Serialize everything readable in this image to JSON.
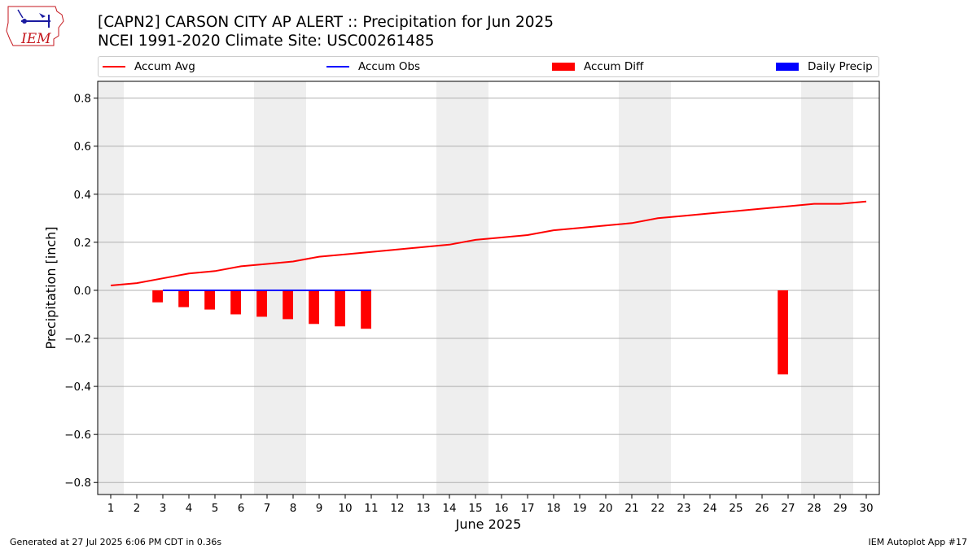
{
  "logo": {
    "text": "IEM"
  },
  "title_line1": "[CAPN2] CARSON CITY AP ALERT :: Precipitation for Jun 2025",
  "title_line2": "NCEI 1991-2020 Climate Site: USC00261485",
  "legend": [
    {
      "label": "Accum Avg",
      "color": "#ff0000",
      "kind": "line"
    },
    {
      "label": "Accum Obs",
      "color": "#0000ff",
      "kind": "line"
    },
    {
      "label": "Accum Diff",
      "color": "#ff0000",
      "kind": "patch"
    },
    {
      "label": "Daily Precip",
      "color": "#0000ff",
      "kind": "patch"
    }
  ],
  "footer_left": "Generated at 27 Jul 2025 6:06 PM CDT in 0.36s",
  "footer_right": "IEM Autoplot App #17",
  "chart_data": {
    "type": "line",
    "xlabel": "June 2025",
    "ylabel": "Precipitation [inch]",
    "xlim": [
      0.5,
      30.5
    ],
    "ylim": [
      -0.85,
      0.87
    ],
    "x_ticks": [
      1,
      2,
      3,
      4,
      5,
      6,
      7,
      8,
      9,
      10,
      11,
      12,
      13,
      14,
      15,
      16,
      17,
      18,
      19,
      20,
      21,
      22,
      23,
      24,
      25,
      26,
      27,
      28,
      29,
      30
    ],
    "y_ticks": [
      0.8,
      0.6,
      0.4,
      0.2,
      0.0,
      -0.2,
      -0.4,
      -0.6,
      -0.8
    ],
    "y_tick_labels": [
      "0.8",
      "0.6",
      "0.4",
      "0.2",
      "0.0",
      "−0.2",
      "−0.4",
      "−0.6",
      "−0.8"
    ],
    "grid": "horizontal",
    "weekend_shading": [
      [
        0.5,
        1.5
      ],
      [
        6.5,
        8.5
      ],
      [
        13.5,
        15.5
      ],
      [
        20.5,
        22.5
      ],
      [
        27.5,
        29.5
      ]
    ],
    "shading_color": "#eeeeee",
    "series": [
      {
        "name": "Accum Avg",
        "kind": "line",
        "color": "#ff0000",
        "x": [
          1,
          2,
          3,
          4,
          5,
          6,
          7,
          8,
          9,
          10,
          11,
          12,
          13,
          14,
          15,
          16,
          17,
          18,
          19,
          20,
          21,
          22,
          23,
          24,
          25,
          26,
          27,
          28,
          29,
          30
        ],
        "y": [
          0.02,
          0.03,
          0.05,
          0.07,
          0.08,
          0.1,
          0.11,
          0.12,
          0.14,
          0.15,
          0.16,
          0.17,
          0.18,
          0.19,
          0.21,
          0.22,
          0.23,
          0.25,
          0.26,
          0.27,
          0.28,
          0.3,
          0.31,
          0.32,
          0.33,
          0.34,
          0.35,
          0.36,
          0.36,
          0.37
        ]
      },
      {
        "name": "Accum Obs",
        "kind": "line",
        "color": "#0000ff",
        "x": [
          3,
          4,
          5,
          6,
          7,
          8,
          9,
          10,
          11
        ],
        "y": [
          0,
          0,
          0,
          0,
          0,
          0,
          0,
          0,
          0
        ]
      },
      {
        "name": "Accum Diff",
        "kind": "bar",
        "color": "#ff0000",
        "x": [
          3,
          4,
          5,
          6,
          7,
          8,
          9,
          10,
          11,
          27
        ],
        "y": [
          -0.05,
          -0.07,
          -0.08,
          -0.1,
          -0.11,
          -0.12,
          -0.14,
          -0.15,
          -0.16,
          -0.35
        ]
      },
      {
        "name": "Daily Precip",
        "kind": "bar",
        "color": "#0000ff",
        "x": [],
        "y": []
      }
    ]
  }
}
